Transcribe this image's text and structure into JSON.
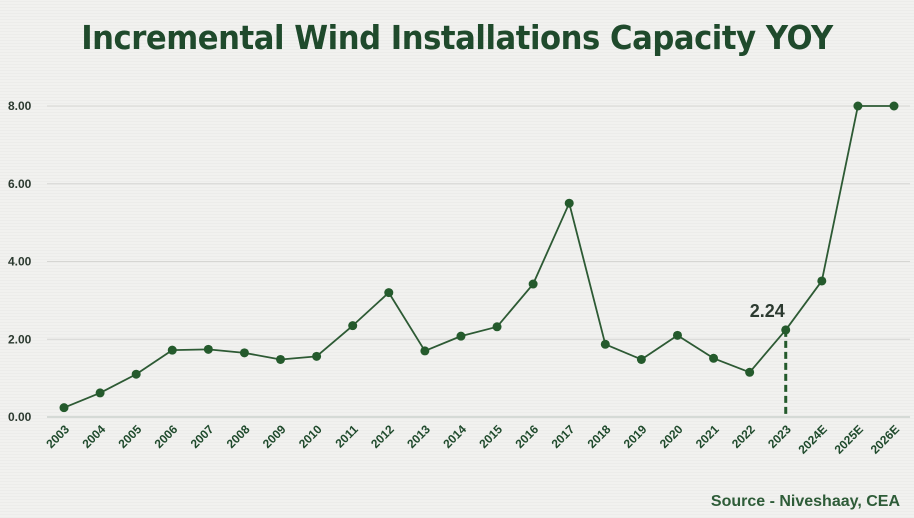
{
  "chart_data": {
    "type": "line",
    "title": "Incremental Wind Installations Capacity YOY",
    "xlabel": "",
    "ylabel": "",
    "ylim": [
      0,
      8
    ],
    "yticks": [
      "0.00",
      "2.00",
      "4.00",
      "6.00",
      "8.00"
    ],
    "ytick_values": [
      0,
      2,
      4,
      6,
      8
    ],
    "grid": true,
    "categories": [
      "2003",
      "2004",
      "2005",
      "2006",
      "2007",
      "2008",
      "2009",
      "2010",
      "2011",
      "2012",
      "2013",
      "2014",
      "2015",
      "2016",
      "2017",
      "2018",
      "2019",
      "2020",
      "2021",
      "2022",
      "2023",
      "2024E",
      "2025E",
      "2026E"
    ],
    "series": [
      {
        "name": "Incremental Wind Installations Capacity",
        "values": [
          0.24,
          0.62,
          1.1,
          1.72,
          1.74,
          1.65,
          1.48,
          1.56,
          2.35,
          3.2,
          1.7,
          2.08,
          2.32,
          3.42,
          5.5,
          1.87,
          1.48,
          2.1,
          1.51,
          1.15,
          2.24,
          3.5,
          8.0,
          8.0
        ]
      }
    ],
    "annotations": [
      {
        "category": "2023",
        "value": 2.24,
        "text": "2.24",
        "style": "dashed-drop-line"
      }
    ],
    "source": "Source - Niveshaay, CEA"
  },
  "colors": {
    "line": "#2d5a34",
    "marker": "#245a2c",
    "title": "#1f4a2c",
    "grid": "#d6d6d3",
    "axis": "#b9c2bc"
  }
}
